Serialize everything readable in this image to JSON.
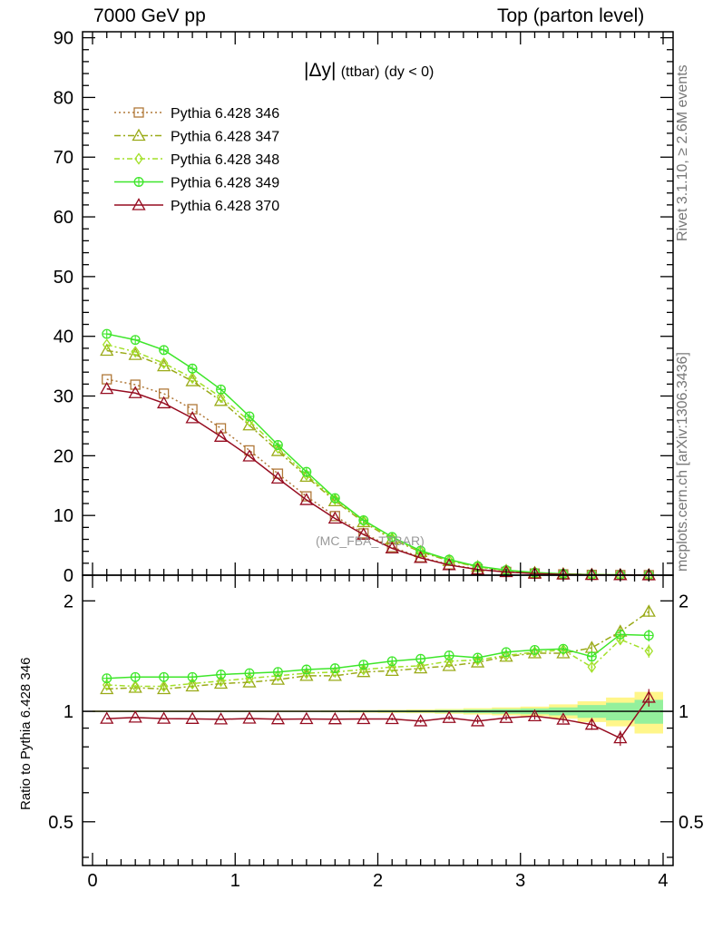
{
  "header": {
    "left": "7000 GeV pp",
    "right": "Top (parton level)"
  },
  "title": {
    "main": "|Δy|",
    "sub": "(ttbar)",
    "cond": "(dy < 0)"
  },
  "watermark": "(MC_FBA_TTBAR)",
  "side_labels": {
    "rivet": "Rivet 3.1.10, ≥ 2.6M events",
    "mcplots": "mcplots.cern.ch [arXiv:1306.3436]"
  },
  "ratio_ylabel": "Ratio to Pythia 6.428 346",
  "chart_data": [
    {
      "type": "line",
      "panel": "main",
      "ylim": [
        0,
        91
      ],
      "xlim": [
        -0.07,
        4.07
      ],
      "yticks": [
        "0",
        "10",
        "20",
        "30",
        "40",
        "50",
        "60",
        "70",
        "80",
        "90"
      ],
      "legend_position": "top-left",
      "x": [
        0.1,
        0.3,
        0.5,
        0.7,
        0.9,
        1.1,
        1.3,
        1.5,
        1.7,
        1.9,
        2.1,
        2.3,
        2.5,
        2.7,
        2.9,
        3.1,
        3.3,
        3.5,
        3.7,
        3.9
      ],
      "series": [
        {
          "name": "Pythia 6.428 346",
          "color": "#b07838",
          "marker": "square",
          "dash": "2,3",
          "values": [
            32.8,
            31.9,
            30.4,
            27.8,
            24.6,
            20.9,
            17.0,
            13.2,
            9.9,
            7.0,
            4.7,
            3.0,
            1.8,
            1.0,
            0.55,
            0.28,
            0.14,
            0.06,
            0.03,
            0.01
          ]
        },
        {
          "name": "Pythia 6.428 347",
          "color": "#9aaa18",
          "marker": "triangle",
          "dash": "7,3,2,3",
          "values": [
            37.6,
            36.9,
            35.0,
            32.5,
            29.2,
            25.1,
            20.8,
            16.5,
            12.4,
            8.9,
            6.0,
            3.9,
            2.4,
            1.4,
            0.75,
            0.4,
            0.2,
            0.09,
            0.05,
            0.02
          ]
        },
        {
          "name": "Pythia 6.428 348",
          "color": "#a2e028",
          "marker": "diamond",
          "dash": "6,3,2,3",
          "values": [
            38.6,
            37.4,
            35.5,
            33.0,
            29.8,
            25.8,
            21.3,
            16.8,
            12.7,
            9.1,
            6.2,
            4.0,
            2.5,
            1.4,
            0.8,
            0.42,
            0.21,
            0.09,
            0.05,
            0.02
          ]
        },
        {
          "name": "Pythia 6.428 349",
          "color": "#3ee62a",
          "marker": "cross-circle",
          "dash": "",
          "values": [
            40.4,
            39.4,
            37.7,
            34.6,
            31.1,
            26.6,
            21.8,
            17.3,
            12.9,
            9.2,
            6.4,
            4.1,
            2.6,
            1.5,
            0.85,
            0.45,
            0.23,
            0.1,
            0.05,
            0.02
          ]
        },
        {
          "name": "Pythia 6.428 370",
          "color": "#960c20",
          "marker": "triangle",
          "dash": "",
          "values": [
            31.2,
            30.5,
            28.8,
            26.3,
            23.2,
            19.9,
            16.2,
            12.6,
            9.5,
            6.8,
            4.5,
            2.9,
            1.7,
            0.95,
            0.53,
            0.27,
            0.13,
            0.06,
            0.03,
            0.01
          ]
        }
      ]
    },
    {
      "type": "line",
      "panel": "ratio",
      "ylabel": "Ratio to Pythia 6.428 346",
      "ylim": [
        0.38,
        2.35
      ],
      "xlim": [
        -0.07,
        4.07
      ],
      "yticks": [
        "0.5",
        "1",
        "2"
      ],
      "xticks": [
        "0",
        "1",
        "2",
        "3",
        "4"
      ],
      "x": [
        0.1,
        0.3,
        0.5,
        0.7,
        0.9,
        1.1,
        1.3,
        1.5,
        1.7,
        1.9,
        2.1,
        2.3,
        2.5,
        2.7,
        2.9,
        3.1,
        3.3,
        3.5,
        3.7,
        3.9
      ],
      "band": {
        "yellow_halfwidth": [
          0.005,
          0.005,
          0.005,
          0.005,
          0.005,
          0.005,
          0.005,
          0.005,
          0.006,
          0.008,
          0.01,
          0.012,
          0.015,
          0.02,
          0.025,
          0.03,
          0.045,
          0.065,
          0.09,
          0.13
        ],
        "green_halfwidth": [
          0.003,
          0.003,
          0.003,
          0.003,
          0.003,
          0.003,
          0.003,
          0.003,
          0.004,
          0.005,
          0.006,
          0.007,
          0.009,
          0.012,
          0.015,
          0.018,
          0.025,
          0.04,
          0.055,
          0.075
        ]
      },
      "series": [
        {
          "name": "Pythia 6.428 347",
          "color": "#9aaa18",
          "marker": "triangle",
          "dash": "7,3,2,3",
          "values": [
            1.15,
            1.16,
            1.15,
            1.17,
            1.19,
            1.2,
            1.22,
            1.25,
            1.25,
            1.28,
            1.29,
            1.31,
            1.33,
            1.36,
            1.41,
            1.44,
            1.44,
            1.49,
            1.65,
            1.87
          ],
          "errors": [
            0.01,
            0.01,
            0.01,
            0.01,
            0.01,
            0.01,
            0.01,
            0.01,
            0.01,
            0.01,
            0.01,
            0.01,
            0.015,
            0.02,
            0.02,
            0.02,
            0.03,
            0.04,
            0.05,
            0.06
          ]
        },
        {
          "name": "Pythia 6.428 348",
          "color": "#a2e028",
          "marker": "diamond",
          "dash": "6,3,2,3",
          "values": [
            1.18,
            1.17,
            1.17,
            1.19,
            1.21,
            1.23,
            1.25,
            1.27,
            1.28,
            1.3,
            1.32,
            1.33,
            1.37,
            1.38,
            1.42,
            1.45,
            1.47,
            1.32,
            1.57,
            1.46
          ],
          "errors": [
            0.01,
            0.01,
            0.01,
            0.01,
            0.01,
            0.01,
            0.01,
            0.01,
            0.01,
            0.01,
            0.01,
            0.01,
            0.015,
            0.02,
            0.02,
            0.02,
            0.03,
            0.04,
            0.05,
            0.06
          ]
        },
        {
          "name": "Pythia 6.428 349",
          "color": "#3ee62a",
          "marker": "cross-circle",
          "dash": "",
          "values": [
            1.23,
            1.24,
            1.24,
            1.24,
            1.26,
            1.27,
            1.28,
            1.3,
            1.31,
            1.34,
            1.37,
            1.39,
            1.42,
            1.4,
            1.45,
            1.47,
            1.48,
            1.41,
            1.62,
            1.61
          ],
          "errors": [
            0.01,
            0.01,
            0.01,
            0.01,
            0.01,
            0.01,
            0.01,
            0.01,
            0.01,
            0.01,
            0.01,
            0.01,
            0.015,
            0.02,
            0.02,
            0.02,
            0.03,
            0.04,
            0.05,
            0.06
          ]
        },
        {
          "name": "Pythia 6.428 370",
          "color": "#960c20",
          "marker": "triangle",
          "dash": "",
          "values": [
            0.955,
            0.962,
            0.955,
            0.954,
            0.951,
            0.956,
            0.952,
            0.953,
            0.952,
            0.953,
            0.953,
            0.94,
            0.96,
            0.94,
            0.96,
            0.97,
            0.95,
            0.92,
            0.845,
            1.09
          ],
          "errors": [
            0.005,
            0.005,
            0.005,
            0.005,
            0.005,
            0.005,
            0.005,
            0.005,
            0.005,
            0.006,
            0.008,
            0.01,
            0.012,
            0.015,
            0.015,
            0.02,
            0.02,
            0.03,
            0.04,
            0.06
          ]
        }
      ]
    }
  ]
}
